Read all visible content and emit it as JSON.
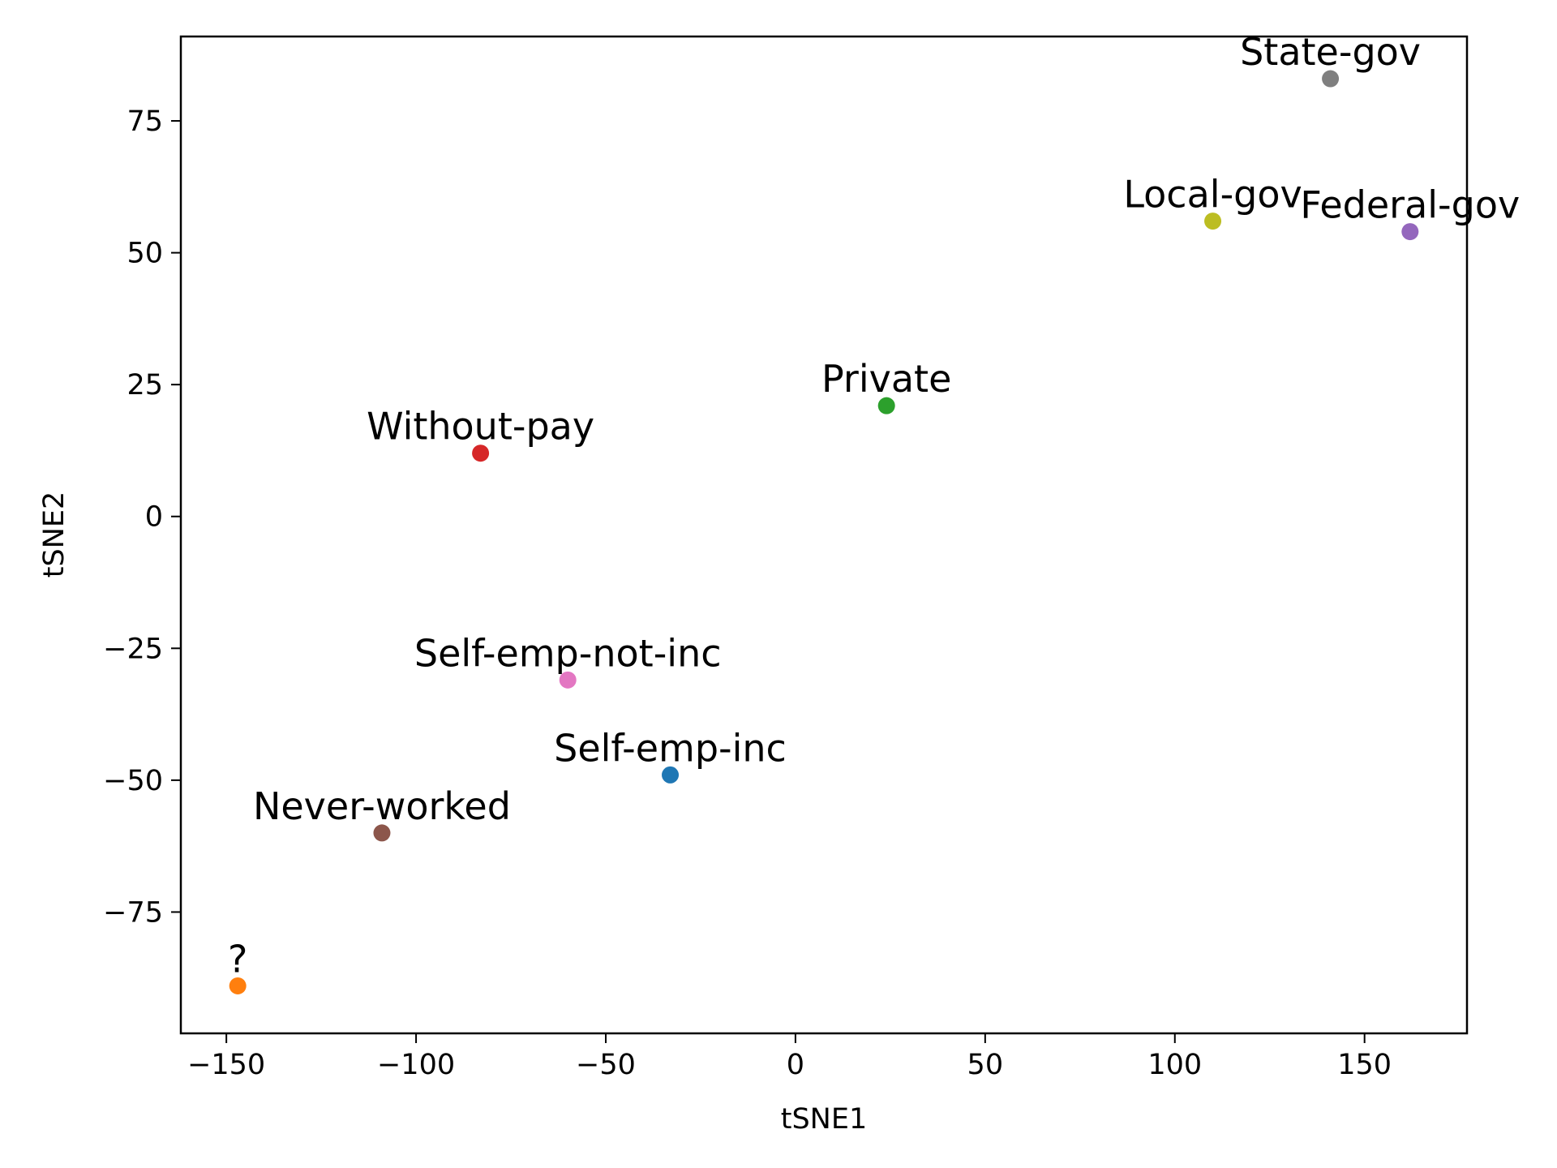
{
  "chart_data": {
    "type": "scatter",
    "title": "",
    "xlabel": "tSNE1",
    "ylabel": "tSNE2",
    "xlim": [
      -162,
      177
    ],
    "ylim": [
      -98,
      91
    ],
    "xticks": [
      -150,
      -100,
      -50,
      0,
      50,
      100,
      150
    ],
    "yticks": [
      -75,
      -50,
      -25,
      0,
      25,
      50,
      75
    ],
    "grid": false,
    "legend": "none",
    "points": [
      {
        "label": "State-gov",
        "x": 141,
        "y": 83,
        "color": "#7f7f7f"
      },
      {
        "label": "Local-gov",
        "x": 110,
        "y": 56,
        "color": "#bcbd22"
      },
      {
        "label": "Federal-gov",
        "x": 162,
        "y": 54,
        "color": "#9467bd"
      },
      {
        "label": "Private",
        "x": 24,
        "y": 21,
        "color": "#2ca02c"
      },
      {
        "label": "Without-pay",
        "x": -83,
        "y": 12,
        "color": "#d62728"
      },
      {
        "label": "Self-emp-not-inc",
        "x": -60,
        "y": -31,
        "color": "#e377c2"
      },
      {
        "label": "Self-emp-inc",
        "x": -33,
        "y": -49,
        "color": "#1f77b4"
      },
      {
        "label": "Never-worked",
        "x": -109,
        "y": -60,
        "color": "#8c564b"
      },
      {
        "label": "?",
        "x": -147,
        "y": -89,
        "color": "#ff7f0e"
      }
    ]
  }
}
